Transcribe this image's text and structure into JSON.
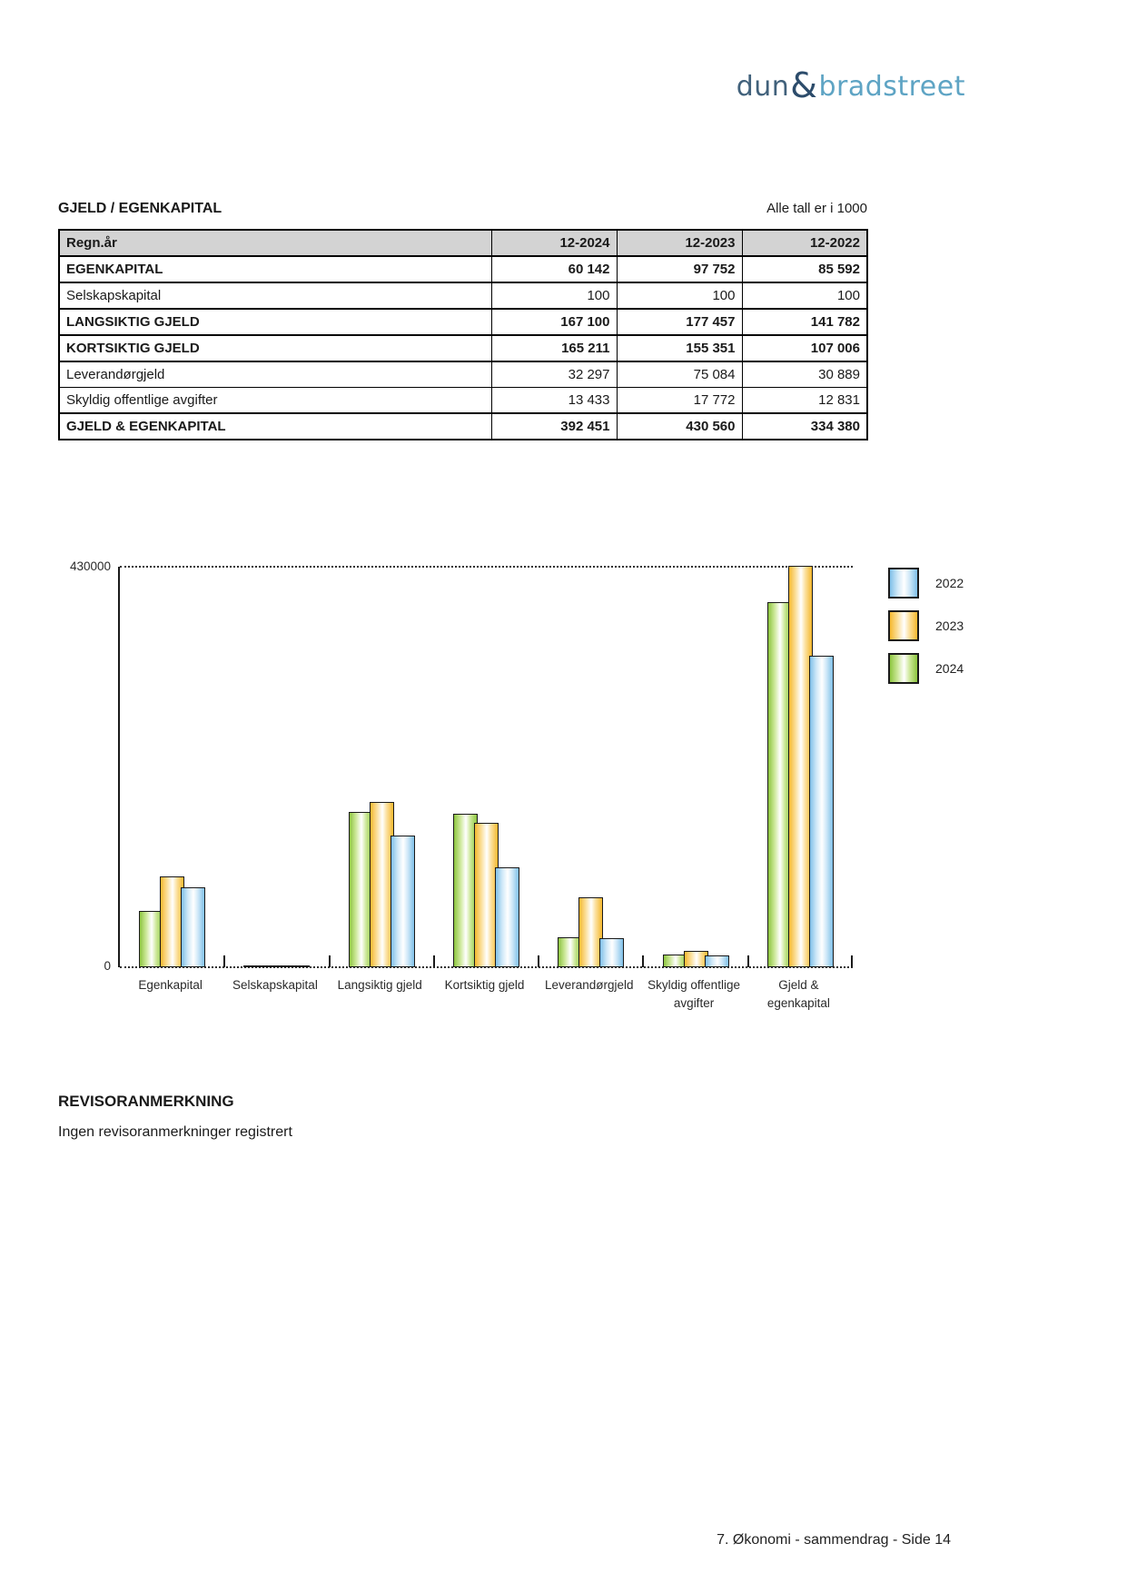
{
  "logo": {
    "dun": "dun",
    "amp": "&",
    "bradstreet": "bradstreet"
  },
  "table": {
    "title": "GJELD / EGENKAPITAL",
    "note": "Alle tall er i 1000",
    "columns": {
      "label": "Regn.år",
      "years": [
        "12-2024",
        "12-2023",
        "12-2022"
      ]
    },
    "rows": [
      {
        "label": "EGENKAPITAL",
        "bold": true,
        "values": [
          "60 142",
          "97 752",
          "85 592"
        ]
      },
      {
        "label": "Selskapskapital",
        "bold": false,
        "values": [
          "100",
          "100",
          "100"
        ]
      },
      {
        "label": "LANGSIKTIG GJELD",
        "bold": true,
        "values": [
          "167 100",
          "177 457",
          "141 782"
        ]
      },
      {
        "label": "KORTSIKTIG GJELD",
        "bold": true,
        "values": [
          "165 211",
          "155 351",
          "107 006"
        ]
      },
      {
        "label": "Leverandørgjeld",
        "bold": false,
        "values": [
          "32 297",
          "75 084",
          "30 889"
        ]
      },
      {
        "label": "Skyldig offentlige avgifter",
        "bold": false,
        "values": [
          "13 433",
          "17 772",
          "12 831"
        ]
      },
      {
        "label": "GJELD & EGENKAPITAL",
        "bold": true,
        "values": [
          "392 451",
          "430 560",
          "334 380"
        ]
      }
    ]
  },
  "chart_data": {
    "type": "bar",
    "categories": [
      "Egenkapital",
      "Selskapskapital",
      "Langsiktig gjeld",
      "Kortsiktig gjeld",
      "Leverandørgjeld",
      "Skyldig offentlige avgifter",
      "Gjeld & egenkapital"
    ],
    "series": [
      {
        "name": "2024",
        "color_edge": "#8dc63f",
        "color_light": "#cde89a",
        "values": [
          60142,
          100,
          167100,
          165211,
          32297,
          13433,
          392451
        ]
      },
      {
        "name": "2023",
        "color_edge": "#f5b82e",
        "color_light": "#fbdf9a",
        "values": [
          97752,
          100,
          177457,
          155351,
          75084,
          17772,
          430560
        ]
      },
      {
        "name": "2022",
        "color_edge": "#7fc0e8",
        "color_light": "#cfe8f8",
        "values": [
          85592,
          100,
          141782,
          107006,
          30889,
          12831,
          334380
        ]
      }
    ],
    "legend": [
      "2022",
      "2023",
      "2024"
    ],
    "legend_position": "right-top",
    "ylim": [
      0,
      430000
    ],
    "ymax_label": "430000",
    "y0_label": "0",
    "grid": "dotted line at ymax and dotted baseline with category ticks",
    "bar_style": "glossy horizontal gradient, black outline, groups of 3 overlapping bars"
  },
  "sections": {
    "revisor_title": "REVISORANMERKNING",
    "revisor_text": "Ingen revisoranmerkninger registrert"
  },
  "footer": "7. Økonomi - sammendrag - Side 14"
}
